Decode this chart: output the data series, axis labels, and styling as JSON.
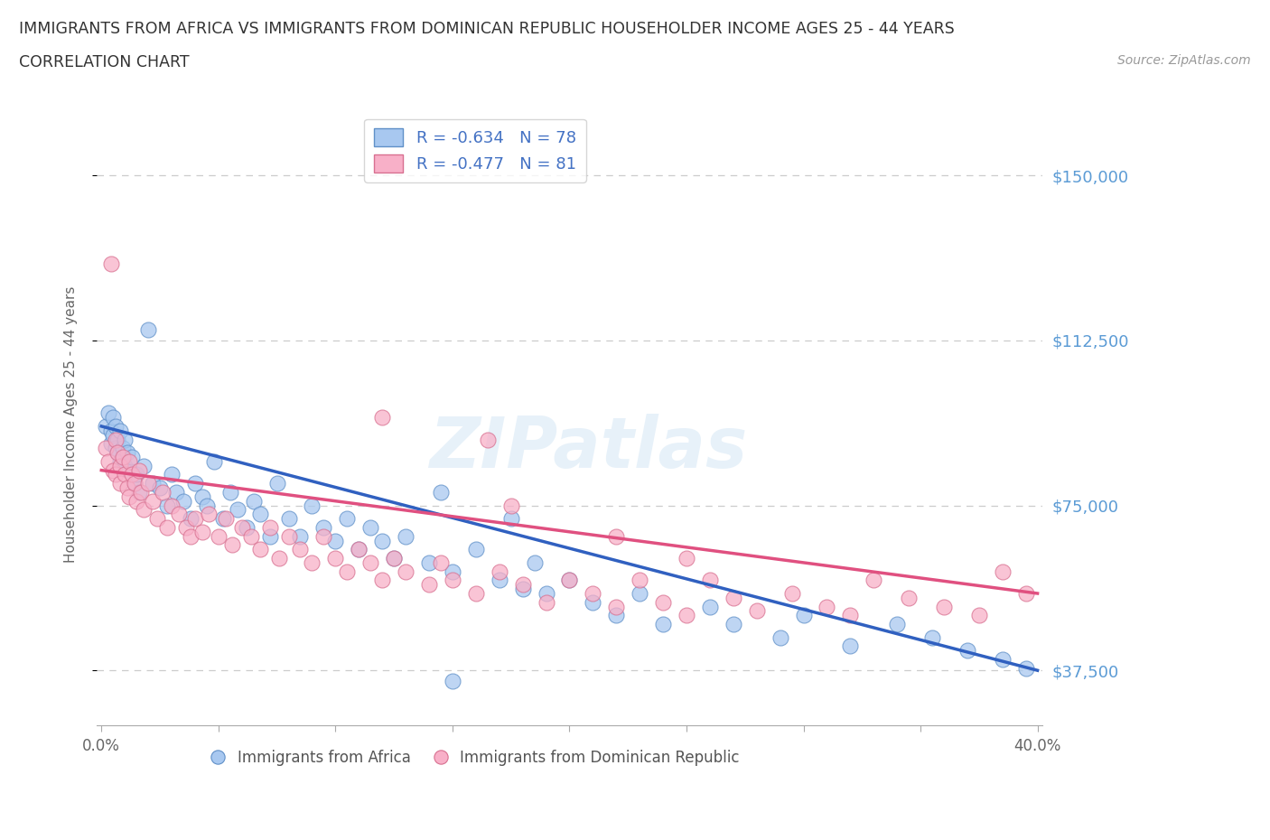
{
  "title_line1": "IMMIGRANTS FROM AFRICA VS IMMIGRANTS FROM DOMINICAN REPUBLIC HOUSEHOLDER INCOME AGES 25 - 44 YEARS",
  "title_line2": "CORRELATION CHART",
  "source_text": "Source: ZipAtlas.com",
  "ylabel": "Householder Income Ages 25 - 44 years",
  "xlim": [
    -0.002,
    0.402
  ],
  "ylim": [
    25000,
    162000
  ],
  "yticks": [
    37500,
    75000,
    112500,
    150000
  ],
  "ytick_labels": [
    "$37,500",
    "$75,000",
    "$112,500",
    "$150,000"
  ],
  "xticks": [
    0.0,
    0.05,
    0.1,
    0.15,
    0.2,
    0.25,
    0.3,
    0.35,
    0.4
  ],
  "africa_color": "#a8c8f0",
  "africa_edge": "#6090c8",
  "dr_color": "#f8b0c8",
  "dr_edge": "#d87090",
  "line_africa_color": "#3060c0",
  "line_dr_color": "#e05080",
  "legend_africa_r": "R = -0.634",
  "legend_africa_n": "N = 78",
  "legend_dr_r": "R = -0.477",
  "legend_dr_n": "N = 81",
  "grid_color": "#cccccc",
  "background_color": "#ffffff",
  "watermark": "ZIPatlas",
  "africa_x": [
    0.002,
    0.003,
    0.004,
    0.004,
    0.005,
    0.005,
    0.006,
    0.006,
    0.007,
    0.007,
    0.008,
    0.008,
    0.009,
    0.01,
    0.01,
    0.011,
    0.012,
    0.013,
    0.014,
    0.015,
    0.016,
    0.018,
    0.02,
    0.022,
    0.025,
    0.028,
    0.03,
    0.032,
    0.035,
    0.038,
    0.04,
    0.043,
    0.045,
    0.048,
    0.052,
    0.055,
    0.058,
    0.062,
    0.065,
    0.068,
    0.072,
    0.075,
    0.08,
    0.085,
    0.09,
    0.095,
    0.1,
    0.105,
    0.11,
    0.115,
    0.12,
    0.125,
    0.13,
    0.14,
    0.145,
    0.15,
    0.16,
    0.17,
    0.175,
    0.18,
    0.185,
    0.19,
    0.2,
    0.21,
    0.22,
    0.23,
    0.24,
    0.26,
    0.27,
    0.29,
    0.3,
    0.32,
    0.34,
    0.355,
    0.37,
    0.385,
    0.395,
    0.15
  ],
  "africa_y": [
    93000,
    96000,
    89000,
    92000,
    95000,
    91000,
    88000,
    93000,
    90000,
    87000,
    92000,
    85000,
    88000,
    90000,
    84000,
    87000,
    83000,
    86000,
    80000,
    82000,
    78000,
    84000,
    115000,
    80000,
    79000,
    75000,
    82000,
    78000,
    76000,
    72000,
    80000,
    77000,
    75000,
    85000,
    72000,
    78000,
    74000,
    70000,
    76000,
    73000,
    68000,
    80000,
    72000,
    68000,
    75000,
    70000,
    67000,
    72000,
    65000,
    70000,
    67000,
    63000,
    68000,
    62000,
    78000,
    60000,
    65000,
    58000,
    72000,
    56000,
    62000,
    55000,
    58000,
    53000,
    50000,
    55000,
    48000,
    52000,
    48000,
    45000,
    50000,
    43000,
    48000,
    45000,
    42000,
    40000,
    38000,
    35000
  ],
  "dr_x": [
    0.002,
    0.003,
    0.004,
    0.005,
    0.006,
    0.006,
    0.007,
    0.008,
    0.008,
    0.009,
    0.01,
    0.011,
    0.012,
    0.012,
    0.013,
    0.014,
    0.015,
    0.016,
    0.017,
    0.018,
    0.02,
    0.022,
    0.024,
    0.026,
    0.028,
    0.03,
    0.033,
    0.036,
    0.038,
    0.04,
    0.043,
    0.046,
    0.05,
    0.053,
    0.056,
    0.06,
    0.064,
    0.068,
    0.072,
    0.076,
    0.08,
    0.085,
    0.09,
    0.095,
    0.1,
    0.105,
    0.11,
    0.115,
    0.12,
    0.125,
    0.13,
    0.14,
    0.145,
    0.15,
    0.16,
    0.17,
    0.18,
    0.19,
    0.2,
    0.21,
    0.22,
    0.23,
    0.24,
    0.25,
    0.26,
    0.27,
    0.28,
    0.295,
    0.31,
    0.32,
    0.33,
    0.345,
    0.36,
    0.375,
    0.385,
    0.395,
    0.165,
    0.175,
    0.22,
    0.25,
    0.12
  ],
  "dr_y": [
    88000,
    85000,
    130000,
    83000,
    90000,
    82000,
    87000,
    84000,
    80000,
    86000,
    82000,
    79000,
    85000,
    77000,
    82000,
    80000,
    76000,
    83000,
    78000,
    74000,
    80000,
    76000,
    72000,
    78000,
    70000,
    75000,
    73000,
    70000,
    68000,
    72000,
    69000,
    73000,
    68000,
    72000,
    66000,
    70000,
    68000,
    65000,
    70000,
    63000,
    68000,
    65000,
    62000,
    68000,
    63000,
    60000,
    65000,
    62000,
    58000,
    63000,
    60000,
    57000,
    62000,
    58000,
    55000,
    60000,
    57000,
    53000,
    58000,
    55000,
    52000,
    58000,
    53000,
    50000,
    58000,
    54000,
    51000,
    55000,
    52000,
    50000,
    58000,
    54000,
    52000,
    50000,
    60000,
    55000,
    90000,
    75000,
    68000,
    63000,
    95000
  ]
}
